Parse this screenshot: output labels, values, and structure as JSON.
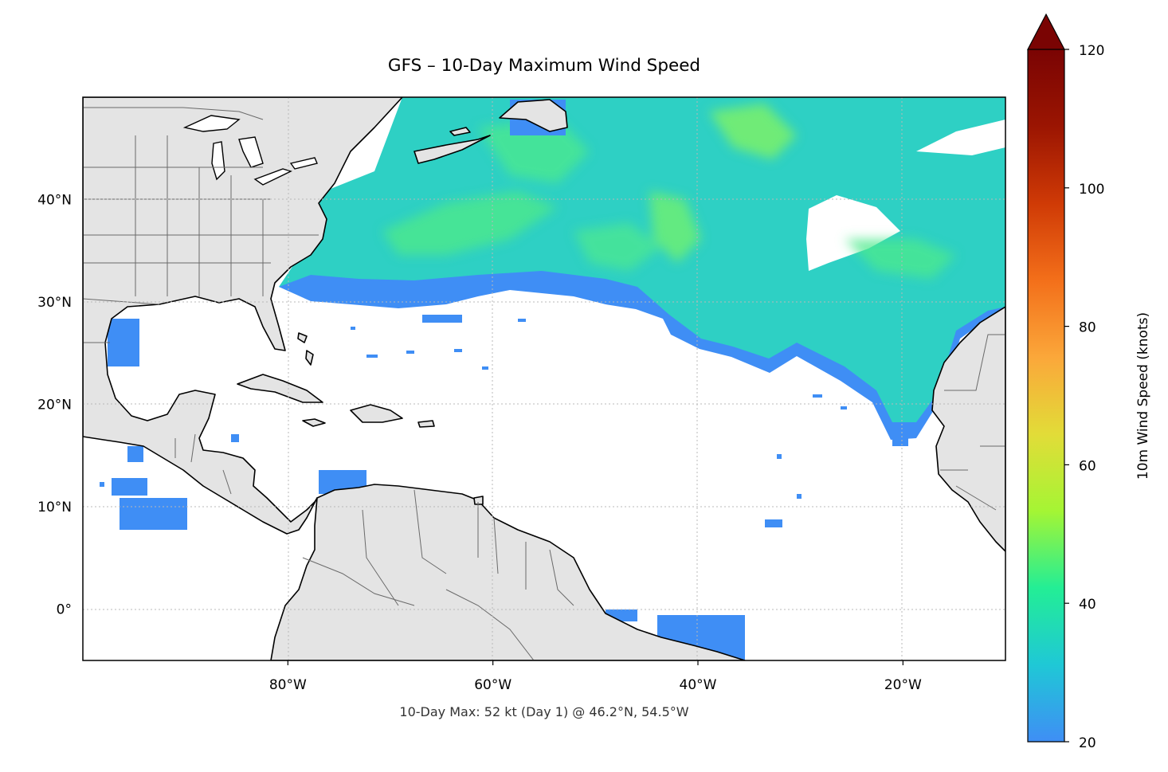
{
  "title": "GFS – 10-Day Maximum Wind Speed",
  "footer": "10-Day Max: 52 kt (Day 1) @ 46.2°N, 54.5°W",
  "map": {
    "lon_range": [
      -100,
      -10
    ],
    "lat_range": [
      -5,
      50
    ],
    "lon_ticks": [
      {
        "value": -80,
        "label": "80°W"
      },
      {
        "value": -60,
        "label": "60°W"
      },
      {
        "value": -40,
        "label": "40°W"
      },
      {
        "value": -20,
        "label": "20°W"
      }
    ],
    "lat_ticks": [
      {
        "value": 40,
        "label": "40°N"
      },
      {
        "value": 30,
        "label": "30°N"
      },
      {
        "value": 20,
        "label": "20°N"
      },
      {
        "value": 10,
        "label": "10°N"
      },
      {
        "value": 0,
        "label": "0°"
      }
    ],
    "land_color": "#e4e4e4",
    "ocean_color": "#ffffff",
    "gridlines": "dotted"
  },
  "colorbar": {
    "label": "10m Wind Speed (knots)",
    "min": 20,
    "max": 120,
    "extend": "max",
    "ticks": [
      {
        "value": 20,
        "label": "20"
      },
      {
        "value": 40,
        "label": "40"
      },
      {
        "value": 60,
        "label": "60"
      },
      {
        "value": 80,
        "label": "80"
      },
      {
        "value": 100,
        "label": "100"
      },
      {
        "value": 120,
        "label": "120"
      }
    ],
    "colormap": [
      "#3f8ef5",
      "#1fc8d6",
      "#23ee95",
      "#a5f534",
      "#e2dc38",
      "#fba73a",
      "#f36f1a",
      "#cf3a06",
      "#9b1502",
      "#7a0403"
    ]
  },
  "chart_data": {
    "type": "heatmap",
    "title": "GFS – 10-Day Maximum Wind Speed",
    "colorbar_label": "10m Wind Speed (knots)",
    "value_range": [
      20,
      120
    ],
    "max_point": {
      "value": 52,
      "unit": "kt",
      "day": 1,
      "lat": 46.2,
      "lon": -54.5
    },
    "regions": [
      {
        "lon": [
          -67,
          -10
        ],
        "lat": [
          31,
          50
        ],
        "max_kt": 45
      },
      {
        "lon": [
          -44,
          -10
        ],
        "lat": [
          18,
          38
        ],
        "max_kt": 35
      },
      {
        "lon": [
          -96,
          -90
        ],
        "lat": [
          23,
          29
        ],
        "max_kt": 25
      },
      {
        "lon": [
          -72,
          -66
        ],
        "lat": [
          11,
          14
        ],
        "max_kt": 25
      },
      {
        "lon": [
          -95,
          -87
        ],
        "lat": [
          9,
          12
        ],
        "max_kt": 25
      },
      {
        "lon": [
          -43,
          -36
        ],
        "lat": [
          -5,
          -1
        ],
        "max_kt": 25
      }
    ]
  }
}
